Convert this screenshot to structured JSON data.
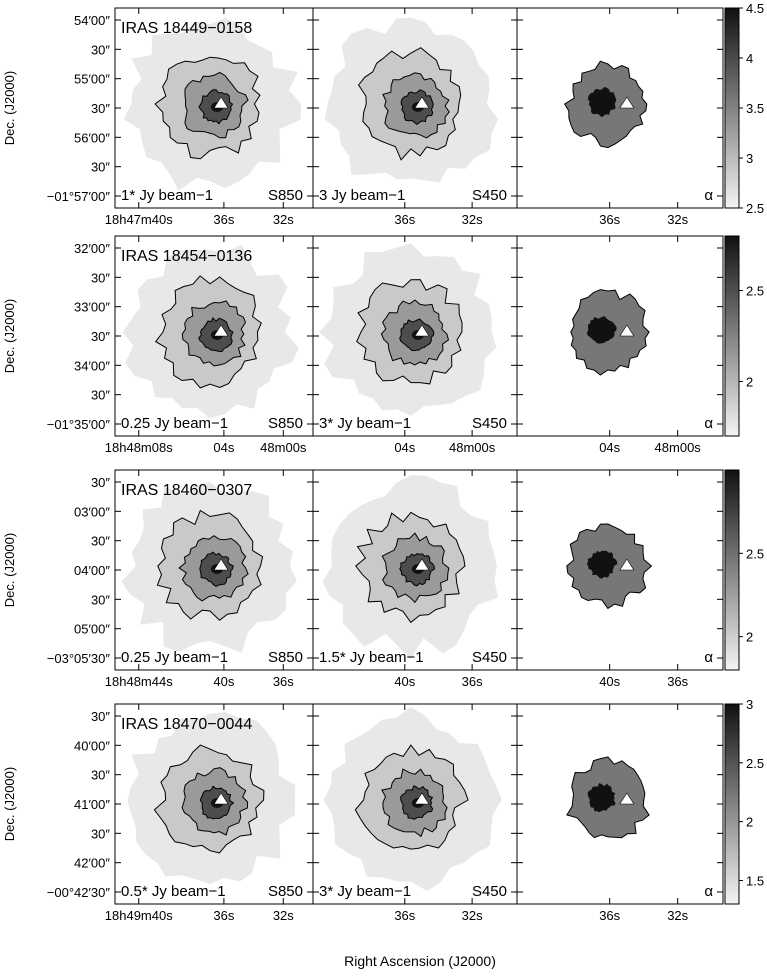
{
  "figure": {
    "xlabel": "Right Ascension (J2000)",
    "ylabel": "Dec. (J2000)"
  },
  "chart_data": [
    {
      "type": "heatmap",
      "source": "IRAS 18449−0158",
      "dec_ticks": [
        "54′00″",
        "30″",
        "55′00″",
        "30″",
        "56′00″",
        "30″",
        "−01°57′00″"
      ],
      "ra_ticks": [
        "18h47m40s",
        "36s",
        "32s"
      ],
      "ra_ticks_short": [
        "36s",
        "32s"
      ],
      "panels": [
        {
          "map": "S850",
          "label_contour": "1* Jy beam−1",
          "label_corner": "S850"
        },
        {
          "map": "S450",
          "label_contour": "3 Jy beam−1",
          "label_corner": "S450"
        },
        {
          "map": "alpha",
          "label_corner": "α"
        }
      ],
      "colorbar": {
        "min": 2.5,
        "max": 4.5,
        "ticks": [
          "4.5",
          "4",
          "3.5",
          "3",
          "2.5"
        ]
      }
    },
    {
      "type": "heatmap",
      "source": "IRAS 18454−0136",
      "dec_ticks": [
        "32′00″",
        "30″",
        "33′00″",
        "30″",
        "34′00″",
        "30″",
        "−01°35′00″"
      ],
      "ra_ticks": [
        "18h48m08s",
        "04s",
        "48m00s"
      ],
      "ra_ticks_short": [
        "04s",
        "48m00s"
      ],
      "panels": [
        {
          "map": "S850",
          "label_contour": "0.25 Jy beam−1",
          "label_corner": "S850"
        },
        {
          "map": "S450",
          "label_contour": "3* Jy beam−1",
          "label_corner": "S450"
        },
        {
          "map": "alpha",
          "label_corner": "α"
        }
      ],
      "colorbar": {
        "min": 1.7,
        "max": 2.8,
        "ticks": [
          "2.5",
          "2"
        ]
      }
    },
    {
      "type": "heatmap",
      "source": "IRAS 18460−0307",
      "dec_ticks": [
        "30″",
        "03′00″",
        "30″",
        "04′00″",
        "30″",
        "05′00″",
        "−03°05′30″"
      ],
      "ra_ticks": [
        "18h48m44s",
        "40s",
        "36s"
      ],
      "ra_ticks_short": [
        "40s",
        "36s"
      ],
      "panels": [
        {
          "map": "S850",
          "label_contour": "0.25 Jy beam−1",
          "label_corner": "S850"
        },
        {
          "map": "S450",
          "label_contour": "1.5* Jy beam−1",
          "label_corner": "S450"
        },
        {
          "map": "alpha",
          "label_corner": "α"
        }
      ],
      "colorbar": {
        "min": 1.8,
        "max": 3.0,
        "ticks": [
          "2.5",
          "2"
        ]
      }
    },
    {
      "type": "heatmap",
      "source": "IRAS 18470−0044",
      "dec_ticks": [
        "30″",
        "40′00″",
        "30″",
        "41′00″",
        "30″",
        "42′00″",
        "−00°42′30″"
      ],
      "ra_ticks": [
        "18h49m40s",
        "36s",
        "32s"
      ],
      "ra_ticks_short": [
        "36s",
        "32s"
      ],
      "panels": [
        {
          "map": "S850",
          "label_contour": "0.5* Jy beam−1",
          "label_corner": "S850"
        },
        {
          "map": "S450",
          "label_contour": "3* Jy beam−1",
          "label_corner": "S450"
        },
        {
          "map": "alpha",
          "label_corner": "α"
        }
      ],
      "colorbar": {
        "min": 1.3,
        "max": 3.0,
        "ticks": [
          "3",
          "2.5",
          "2",
          "1.5"
        ]
      }
    }
  ]
}
